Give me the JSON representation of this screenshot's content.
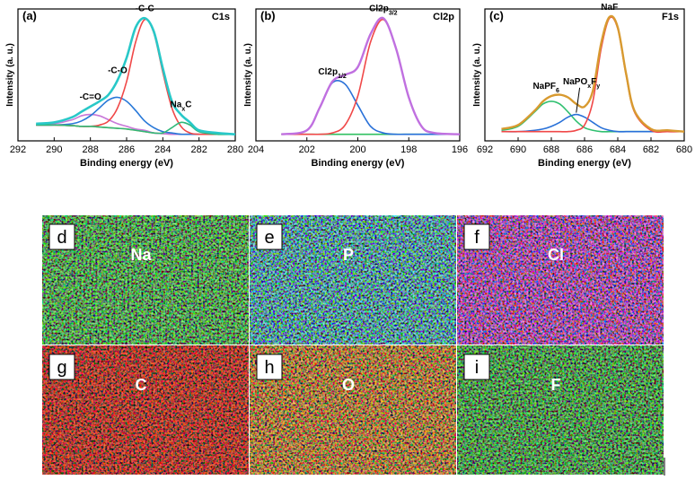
{
  "chart_data": [
    {
      "type": "line",
      "panel": "(a)",
      "title": "C1s",
      "xlabel": "Binding energy (eV)",
      "ylabel": "Intensity (a. u.)",
      "xlim": [
        292,
        280
      ],
      "xticks": [
        292,
        290,
        288,
        286,
        284,
        282,
        280
      ],
      "ylim": [
        0,
        100
      ],
      "x": [
        291,
        290,
        289,
        288.5,
        288,
        287.5,
        287,
        286.5,
        286,
        285.5,
        285,
        284.5,
        284,
        283.5,
        283,
        282.5,
        282,
        281,
        280
      ],
      "series": [
        {
          "color": "#f0a030",
          "values": [
            12,
            12,
            11.5,
            11,
            11,
            10.5,
            10,
            9.5,
            9,
            8,
            7,
            6,
            5.5,
            5,
            5,
            5,
            5,
            5,
            5
          ]
        },
        {
          "name": [
            {
              "text": "-C=O"
            }
          ],
          "color": "#c878d8",
          "values": [
            12,
            13,
            16,
            19,
            20,
            19,
            16,
            13,
            11,
            9,
            8,
            6,
            5.5,
            5,
            5,
            5,
            5,
            5,
            5
          ]
        },
        {
          "name": [
            {
              "text": "-C-O"
            }
          ],
          "color": "#2878d8",
          "values": [
            12,
            12,
            13,
            15,
            19,
            25,
            31,
            33,
            30,
            23,
            15,
            10,
            7,
            6,
            5,
            5,
            5,
            5,
            5
          ]
        },
        {
          "name": [
            {
              "text": "-C-C"
            }
          ],
          "color": "#f04848",
          "values": [
            12,
            12,
            11.5,
            11,
            11,
            12,
            15,
            25,
            45,
            75,
            92,
            82,
            52,
            25,
            11,
            6,
            5,
            5,
            5
          ]
        },
        {
          "name": [
            {
              "text": "Na"
            },
            {
              "text": "x",
              "sub": true
            },
            {
              "text": "C"
            }
          ],
          "color": "#30b878",
          "values": [
            12,
            12,
            11.5,
            11,
            11,
            10.5,
            10,
            9.5,
            9,
            8,
            7,
            6,
            6,
            10,
            14,
            12,
            7,
            5,
            5
          ]
        },
        {
          "color": "#28c8c8",
          "width": 2.6,
          "values": [
            13,
            14,
            18,
            22,
            26,
            30,
            35,
            46,
            63,
            86,
            93,
            83,
            55,
            30,
            20,
            14,
            8,
            6,
            5
          ]
        }
      ]
    },
    {
      "type": "line",
      "panel": "(b)",
      "title": "Cl2p",
      "xlabel": "Binding energy (eV)",
      "ylabel": "Intensity (a. u.)",
      "xlim": [
        204,
        196
      ],
      "xticks": [
        204,
        202,
        200,
        198,
        196
      ],
      "ylim": [
        0,
        100
      ],
      "x": [
        203,
        202,
        201.5,
        201,
        200.5,
        200,
        199.5,
        199,
        198.5,
        198,
        197.5,
        197,
        196
      ],
      "series": [
        {
          "color": "#30c060",
          "values": [
            5,
            5,
            5,
            5,
            5,
            5,
            5,
            5,
            5,
            5,
            5,
            5,
            5
          ]
        },
        {
          "name": [
            {
              "text": "Cl2p"
            },
            {
              "text": "1/2",
              "sub": true
            }
          ],
          "color": "#2870d8",
          "values": [
            5,
            8,
            25,
            44,
            43,
            27,
            11,
            6,
            5,
            5,
            5,
            5,
            5
          ]
        },
        {
          "name": [
            {
              "text": "Cl2p"
            },
            {
              "text": "3/2",
              "sub": true
            }
          ],
          "color": "#f04848",
          "values": [
            5,
            5,
            5,
            6,
            12,
            34,
            75,
            92,
            70,
            33,
            11,
            6,
            5
          ]
        },
        {
          "color": "#c070e0",
          "width": 2.4,
          "values": [
            5,
            8,
            25,
            45,
            50,
            56,
            81,
            93,
            70,
            33,
            11,
            6,
            5
          ]
        }
      ]
    },
    {
      "type": "line",
      "panel": "(c)",
      "title": "F1s",
      "xlabel": "Binding energy (eV)",
      "ylabel": "Intensity (a. u.)",
      "xlim": [
        692,
        680
      ],
      "xticks": [
        692,
        690,
        688,
        686,
        684,
        682,
        680
      ],
      "ylim": [
        0,
        100
      ],
      "x": [
        691,
        690,
        689,
        688.5,
        688,
        687.5,
        687,
        686.5,
        686,
        685.5,
        685,
        684.5,
        684,
        683.5,
        683,
        682,
        681,
        680
      ],
      "series": [
        {
          "name": [
            {
              "text": "NaPF"
            },
            {
              "text": "6",
              "sub": true
            }
          ],
          "color": "#30c070",
          "values": [
            8,
            11,
            22,
            28,
            30,
            28,
            22,
            15,
            10,
            8,
            7,
            7,
            7,
            7,
            7,
            7,
            7,
            7
          ]
        },
        {
          "name": [
            {
              "text": "NaPO"
            },
            {
              "text": "x",
              "sub": true
            },
            {
              "text": "F"
            },
            {
              "text": "y",
              "sub": true
            }
          ],
          "arrow": true,
          "color": "#2870d8",
          "values": [
            7,
            7,
            8,
            9,
            11,
            14,
            18,
            20,
            18,
            14,
            10,
            8,
            7,
            7,
            7,
            7,
            7,
            7
          ]
        },
        {
          "name": [
            {
              "text": "NaF"
            }
          ],
          "color": "#f04848",
          "values": [
            7,
            7,
            7,
            7,
            7,
            7,
            7,
            8,
            12,
            30,
            70,
            93,
            85,
            50,
            22,
            8,
            7,
            7
          ]
        },
        {
          "color": "#d89a30",
          "width": 2.4,
          "values": [
            9,
            12,
            23,
            30,
            34,
            35,
            33,
            28,
            26,
            38,
            74,
            94,
            86,
            51,
            23,
            9,
            8,
            7
          ]
        }
      ]
    }
  ],
  "maps": [
    {
      "letter": "d",
      "element": "Na",
      "color": "#40d040"
    },
    {
      "letter": "e",
      "element": "P",
      "color": "#40c8d0"
    },
    {
      "letter": "f",
      "element": "Cl",
      "color": "#e040e8"
    },
    {
      "letter": "g",
      "element": "C",
      "color": "#ff2418"
    },
    {
      "letter": "h",
      "element": "O",
      "color": "#f08028"
    },
    {
      "letter": "i",
      "element": "F",
      "color": "#38c038"
    }
  ]
}
